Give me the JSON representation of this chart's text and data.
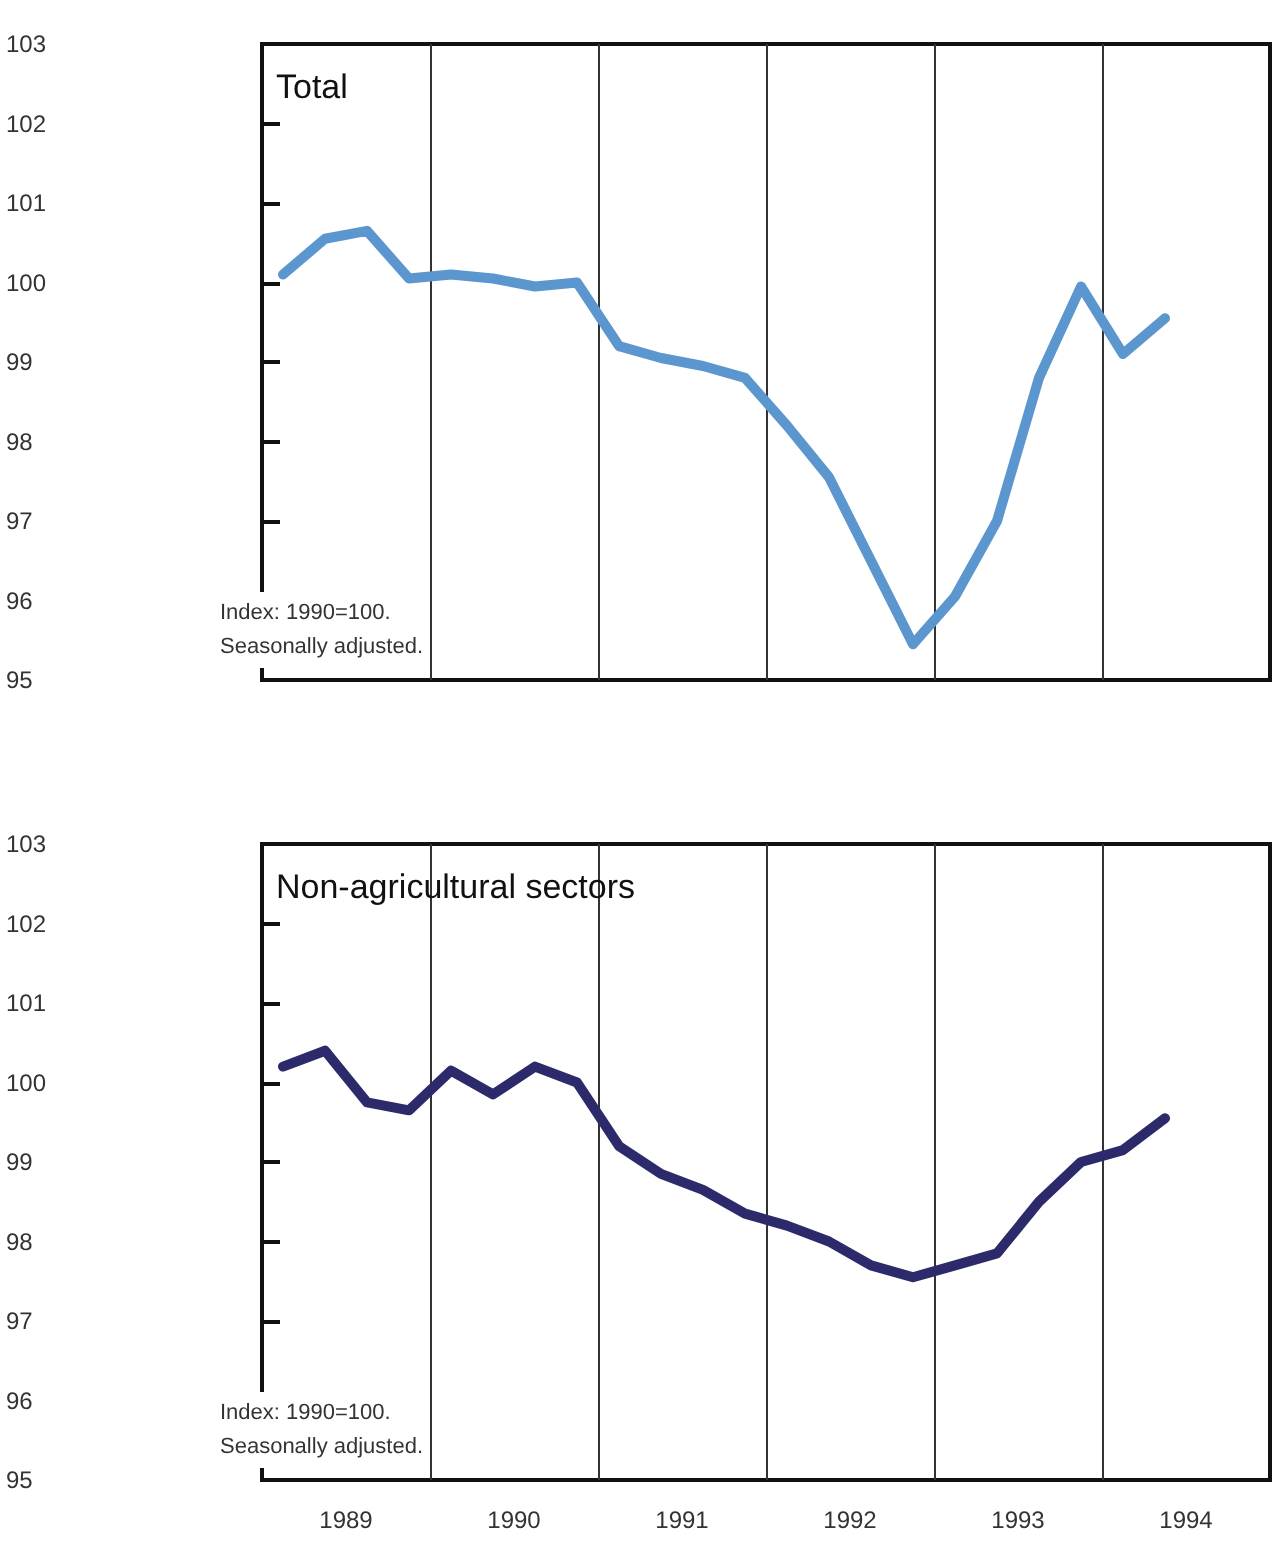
{
  "chart_data": [
    {
      "type": "line",
      "title": "Total",
      "annotations": [
        "Index: 1990=100.\nSeasonally adjusted."
      ],
      "tick_labels": "y",
      "marker": "none",
      "line_style": "solid",
      "x": [
        1989.125,
        1989.375,
        1989.625,
        1989.875,
        1990.125,
        1990.375,
        1990.625,
        1990.875,
        1991.125,
        1991.375,
        1991.625,
        1991.875,
        1992.125,
        1992.375,
        1992.625,
        1992.875,
        1993.125,
        1993.375,
        1993.625,
        1993.875,
        1994.125,
        1994.375
      ],
      "series": [
        {
          "color": "#5b96cf",
          "values": [
            100.1,
            100.55,
            100.65,
            100.05,
            100.1,
            100.05,
            99.95,
            100.0,
            99.2,
            99.05,
            98.95,
            98.8,
            98.2,
            97.55,
            96.5,
            95.45,
            96.05,
            97.0,
            98.8,
            99.95,
            99.1,
            99.55
          ]
        }
      ],
      "xlim": [
        1989,
        1995
      ],
      "ylim": [
        95,
        103
      ],
      "yticks": [
        95,
        96,
        97,
        98,
        99,
        100,
        101,
        102,
        103
      ],
      "ref_lines": [
        {
          "axis": "x",
          "value": 1990,
          "color": "#333333"
        },
        {
          "axis": "x",
          "value": 1991,
          "color": "#333333"
        },
        {
          "axis": "x",
          "value": 1992,
          "color": "#333333"
        },
        {
          "axis": "x",
          "value": 1993,
          "color": "#333333"
        },
        {
          "axis": "x",
          "value": 1994,
          "color": "#333333"
        }
      ]
    },
    {
      "type": "line",
      "title": "Non-agricultural sectors",
      "annotations": [
        "Index: 1990=100.\nSeasonally adjusted."
      ],
      "marker": "none",
      "line_style": "solid",
      "x": [
        1989.125,
        1989.375,
        1989.625,
        1989.875,
        1990.125,
        1990.375,
        1990.625,
        1990.875,
        1991.125,
        1991.375,
        1991.625,
        1991.875,
        1992.125,
        1992.375,
        1992.625,
        1992.875,
        1993.125,
        1993.375,
        1993.625,
        1993.875,
        1994.125,
        1994.375
      ],
      "series": [
        {
          "color": "#2c2a6b",
          "values": [
            100.2,
            100.4,
            99.75,
            99.65,
            100.15,
            99.85,
            100.2,
            100.0,
            99.2,
            98.85,
            98.65,
            98.35,
            98.2,
            98.0,
            97.7,
            97.55,
            97.7,
            97.85,
            98.5,
            99.0,
            99.15,
            99.55
          ]
        }
      ],
      "xlim": [
        1989,
        1995
      ],
      "xticks": [
        {
          "value": 1989.5,
          "label": "1989"
        },
        {
          "value": 1990.5,
          "label": "1990"
        },
        {
          "value": 1991.5,
          "label": "1991"
        },
        {
          "value": 1992.5,
          "label": "1992"
        },
        {
          "value": 1993.5,
          "label": "1993"
        },
        {
          "value": 1994.5,
          "label": "1994"
        }
      ],
      "ylim": [
        95,
        103
      ],
      "yticks": [
        95,
        96,
        97,
        98,
        99,
        100,
        101,
        102,
        103
      ],
      "ref_lines": [
        {
          "axis": "x",
          "value": 1990,
          "color": "#333333"
        },
        {
          "axis": "x",
          "value": 1991,
          "color": "#333333"
        },
        {
          "axis": "x",
          "value": 1992,
          "color": "#333333"
        },
        {
          "axis": "x",
          "value": 1993,
          "color": "#333333"
        },
        {
          "axis": "x",
          "value": 1994,
          "color": "#333333"
        }
      ]
    }
  ]
}
